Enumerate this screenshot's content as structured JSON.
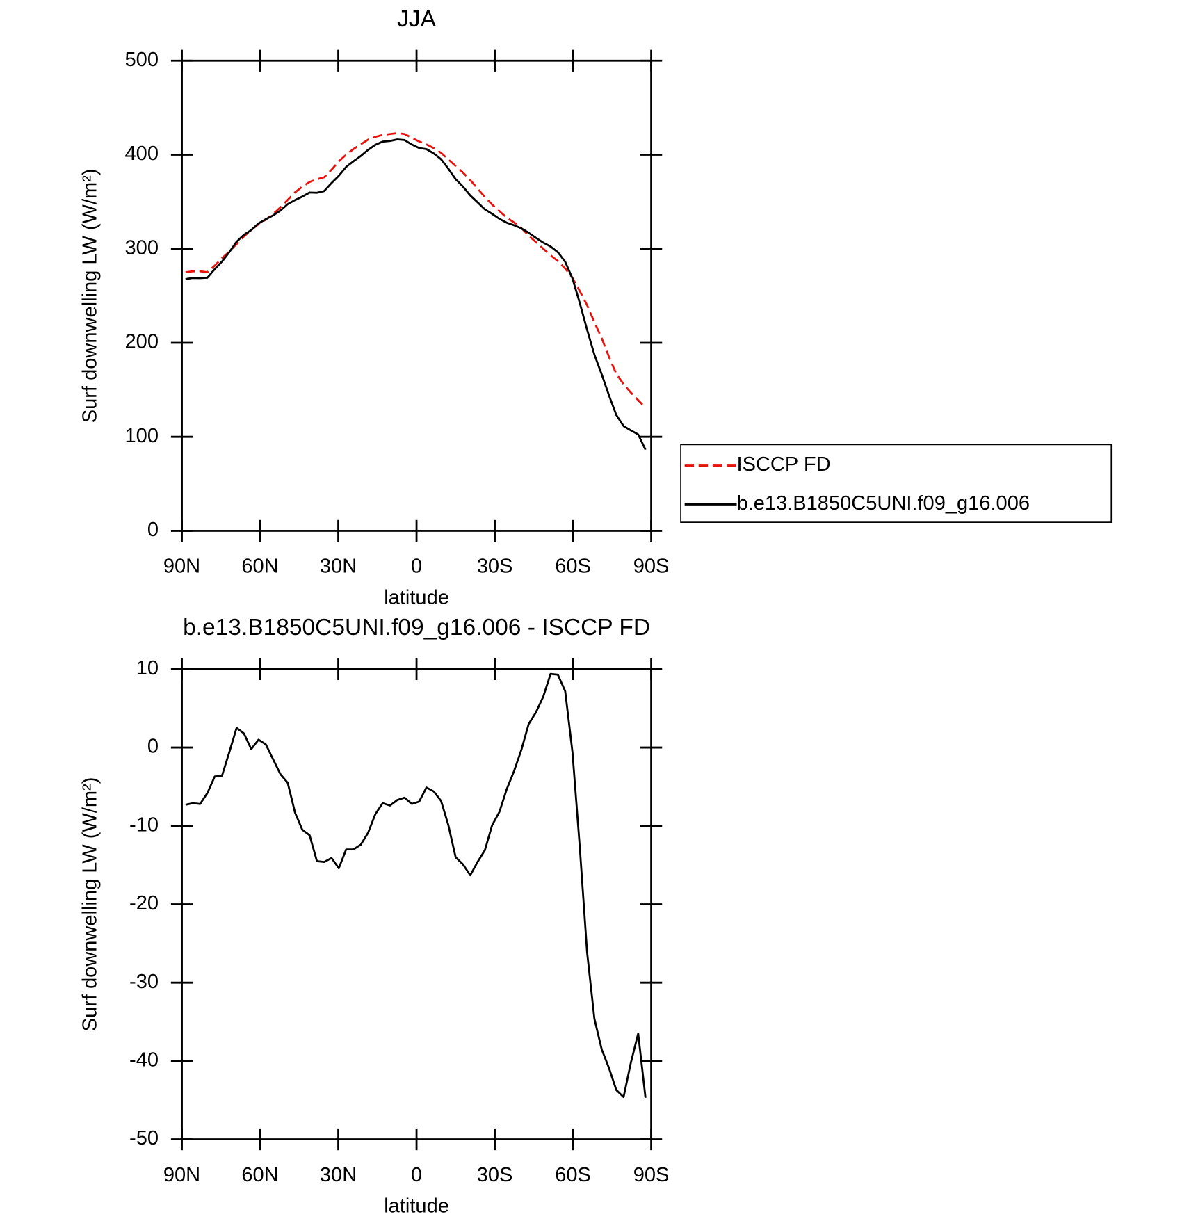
{
  "chart_data": [
    {
      "type": "line",
      "title": "JJA",
      "xlabel": "latitude",
      "ylabel": "Surf downwelling LW (W/m²)",
      "x": [
        88.6,
        85.8,
        83,
        80.2,
        77.4,
        74.6,
        71.8,
        69,
        66.2,
        63.4,
        60.6,
        57.8,
        55,
        52.2,
        49.4,
        46.6,
        43.8,
        41,
        38.2,
        35.4,
        32.6,
        29.8,
        27,
        24.2,
        21.4,
        18.6,
        15.8,
        13,
        10.2,
        7.4,
        4.6,
        1.8,
        -1,
        -3.8,
        -6.6,
        -9.4,
        -12.2,
        -15,
        -17.8,
        -20.6,
        -23.4,
        -26.2,
        -29,
        -31.8,
        -34.6,
        -37.4,
        -40.2,
        -43,
        -45.8,
        -48.6,
        -51.4,
        -54.2,
        -57,
        -59.8,
        -62.6,
        -65.4,
        -68.2,
        -71,
        -73.8,
        -76.6,
        -79.4,
        -82.2,
        -85,
        -87.8
      ],
      "series": [
        {
          "name": "ISCCP FD",
          "color": "#e8120c",
          "line_style": "dashed",
          "values": [
            275,
            276,
            276,
            275,
            282,
            290,
            297,
            305,
            313,
            320,
            326,
            331,
            337,
            344,
            352,
            360,
            366,
            371,
            374,
            376,
            384,
            393,
            400,
            406,
            411,
            416,
            419,
            421,
            422,
            423,
            422,
            418,
            414,
            411,
            407,
            402,
            395,
            388,
            381,
            373,
            364,
            355,
            347,
            340,
            333,
            328,
            322,
            314,
            307,
            300,
            293,
            287,
            279,
            269,
            255,
            240,
            222,
            205,
            185,
            167,
            156,
            147,
            139,
            131
          ]
        },
        {
          "name": "b.e13.B1850C5UNI.f09_g16.006",
          "color": "#000000",
          "line_style": "solid",
          "values": [
            267.7,
            268.9,
            268.8,
            269.2,
            278.3,
            286.4,
            296.4,
            307.5,
            314.8,
            319.8,
            327,
            331.4,
            335.5,
            340.6,
            347.5,
            351.7,
            355.5,
            359.8,
            359.5,
            361.4,
            369.9,
            377.6,
            387,
            393,
            398.6,
            405.1,
            410.5,
            413.9,
            414.6,
            416.3,
            415.6,
            410.8,
            407.1,
            405.9,
            401.4,
            395.2,
            385.1,
            374,
            366.1,
            356.7,
            349.4,
            341.9,
            337.1,
            331.8,
            327.7,
            325,
            321.7,
            317,
            311.5,
            306.5,
            302.4,
            296.3,
            286.2,
            268.4,
            242.3,
            213.9,
            187.4,
            166.5,
            144.1,
            123.3,
            111.4,
            106.8,
            102.5,
            86.3
          ]
        }
      ],
      "xlim": [
        90,
        -90
      ],
      "xticks": [
        {
          "value": 90,
          "label": "90N"
        },
        {
          "value": 60,
          "label": "60N"
        },
        {
          "value": 30,
          "label": "30N"
        },
        0,
        {
          "value": -30,
          "label": "30S"
        },
        {
          "value": -60,
          "label": "60S"
        },
        {
          "value": -90,
          "label": "90S"
        }
      ],
      "ylim": [
        0,
        500
      ],
      "yticks": [
        0,
        100,
        200,
        300,
        400,
        500
      ],
      "legend": "right"
    },
    {
      "type": "line",
      "title": "b.e13.B1850C5UNI.f09_g16.006 - ISCCP FD",
      "xlabel": "latitude",
      "ylabel": "Surf downwelling LW (W/m²)",
      "x": [
        88.6,
        85.8,
        83,
        80.2,
        77.4,
        74.6,
        71.8,
        69,
        66.2,
        63.4,
        60.6,
        57.8,
        55,
        52.2,
        49.4,
        46.6,
        43.8,
        41,
        38.2,
        35.4,
        32.6,
        29.8,
        27,
        24.2,
        21.4,
        18.6,
        15.8,
        13,
        10.2,
        7.4,
        4.6,
        1.8,
        -1,
        -3.8,
        -6.6,
        -9.4,
        -12.2,
        -15,
        -17.8,
        -20.6,
        -23.4,
        -26.2,
        -29,
        -31.8,
        -34.6,
        -37.4,
        -40.2,
        -43,
        -45.8,
        -48.6,
        -51.4,
        -54.2,
        -57,
        -59.8,
        -62.6,
        -65.4,
        -68.2,
        -71,
        -73.8,
        -76.6,
        -79.4,
        -82.2,
        -85,
        -87.8
      ],
      "color": "#000000",
      "values": [
        -7.3,
        -7.1,
        -7.2,
        -5.8,
        -3.7,
        -3.6,
        -0.6,
        2.5,
        1.8,
        -0.2,
        1.0,
        0.4,
        -1.5,
        -3.4,
        -4.5,
        -8.3,
        -10.5,
        -11.2,
        -14.5,
        -14.6,
        -14.1,
        -15.4,
        -13.0,
        -13.0,
        -12.4,
        -10.9,
        -8.5,
        -7.1,
        -7.4,
        -6.7,
        -6.4,
        -7.2,
        -6.9,
        -5.1,
        -5.6,
        -6.8,
        -9.9,
        -14.0,
        -14.9,
        -16.3,
        -14.6,
        -13.1,
        -9.9,
        -8.2,
        -5.3,
        -3.0,
        -0.3,
        3.0,
        4.5,
        6.5,
        9.4,
        9.3,
        7.2,
        -0.6,
        -12.7,
        -26.1,
        -34.6,
        -38.5,
        -40.9,
        -43.7,
        -44.6,
        -40.2,
        -36.5,
        -44.7
      ],
      "xlim": [
        90,
        -90
      ],
      "xticks": [
        {
          "value": 90,
          "label": "90N"
        },
        {
          "value": 60,
          "label": "60N"
        },
        {
          "value": 30,
          "label": "30N"
        },
        0,
        {
          "value": -30,
          "label": "30S"
        },
        {
          "value": -60,
          "label": "60S"
        },
        {
          "value": -90,
          "label": "90S"
        }
      ],
      "ylim": [
        -50,
        10
      ],
      "yticks": [
        -50,
        -40,
        -30,
        -20,
        -10,
        0,
        10
      ]
    }
  ]
}
